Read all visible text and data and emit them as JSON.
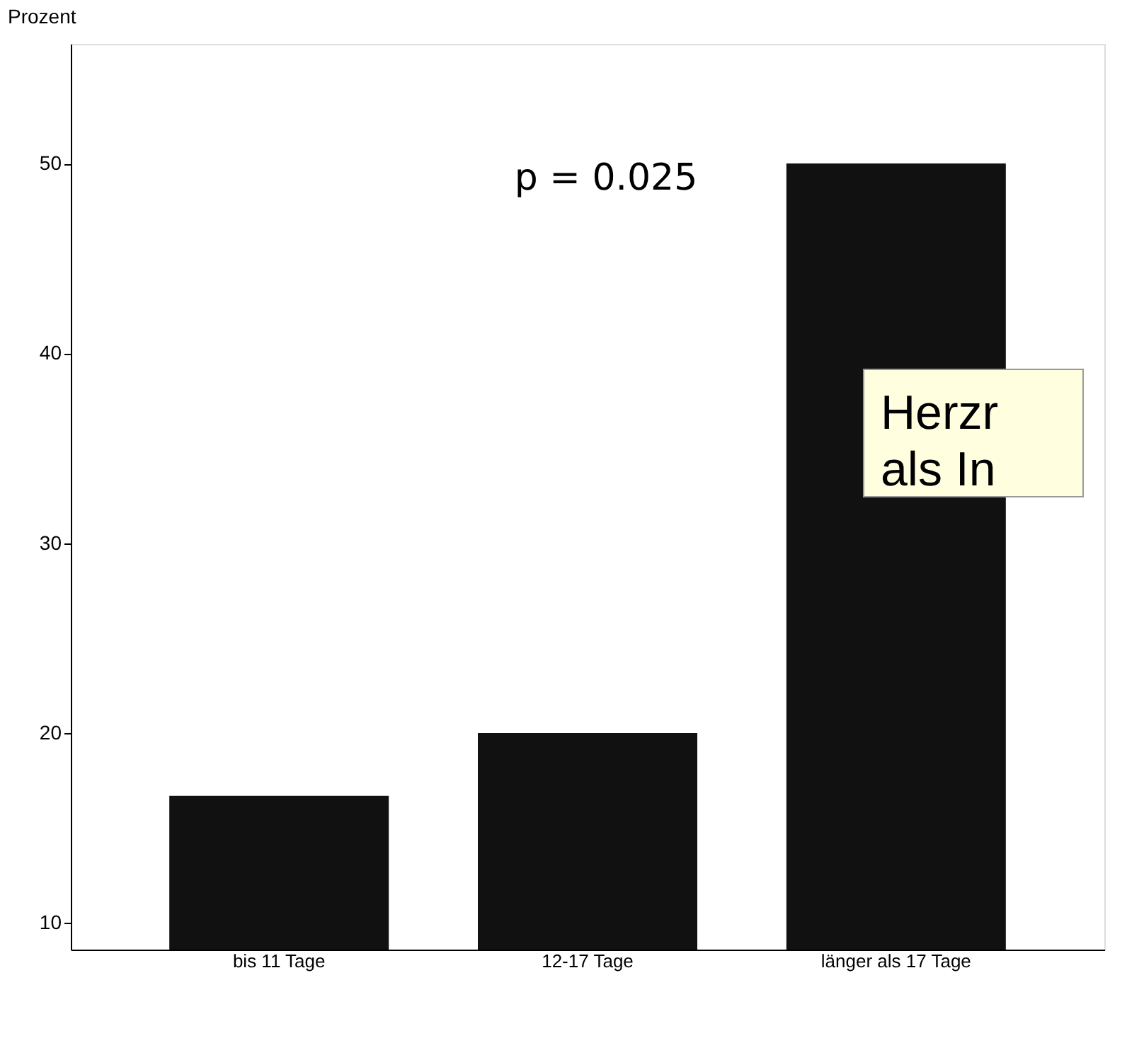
{
  "chart_data": {
    "type": "bar",
    "ylabel": "Prozent",
    "categories": [
      "bis 11 Tage",
      "12-17 Tage",
      "länger als 17 Tage"
    ],
    "values": [
      16.7,
      20,
      50
    ],
    "color": "#111111",
    "ylim": [
      8.6,
      56.3
    ],
    "yticks": [
      10,
      20,
      30,
      40,
      50
    ],
    "grid": false,
    "annotations": [
      "p = 0.025",
      "Herzr\nals In"
    ]
  }
}
